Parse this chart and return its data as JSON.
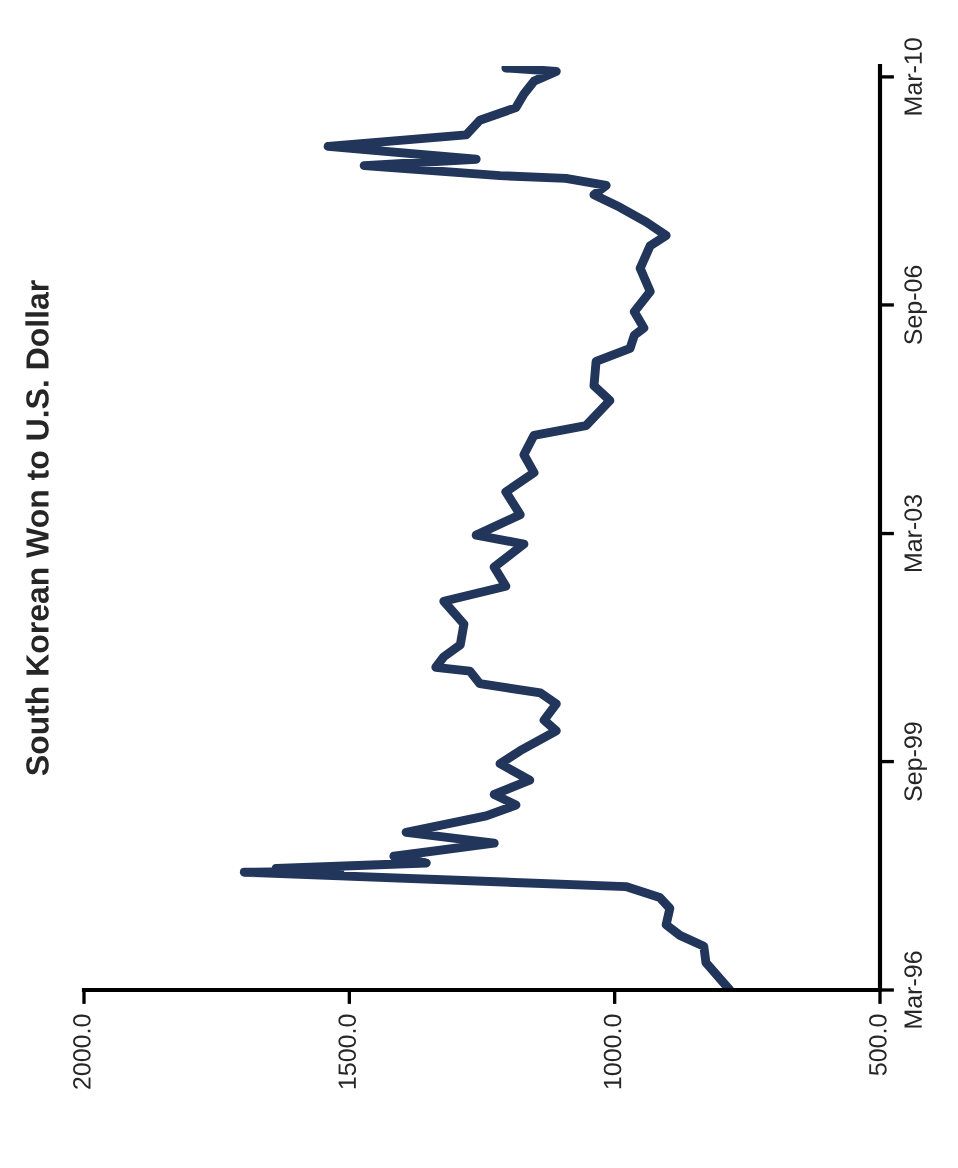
{
  "chart_data": {
    "type": "line",
    "title": "South Korean Won to U.S. Dollar",
    "x": [
      "1996-03-01",
      "1996-08-01",
      "1996-11-01",
      "1997-01-01",
      "1997-03-01",
      "1997-06-01",
      "1997-08-01",
      "1997-10-01",
      "1997-12-20",
      "1997-12-28",
      "1998-01-10",
      "1998-02-10",
      "1998-03-20",
      "1998-06-01",
      "1998-08-01",
      "1998-11-01",
      "1999-01-01",
      "1999-03-01",
      "1999-05-20",
      "1999-08-20",
      "1999-11-01",
      "2000-02-20",
      "2000-04-20",
      "2000-07-20",
      "2000-09-20",
      "2000-11-10",
      "2001-01-20",
      "2001-02-10",
      "2001-04-10",
      "2001-06-15",
      "2001-10-10",
      "2002-02-15",
      "2002-05-10",
      "2002-08-25",
      "2003-01-01",
      "2003-02-20",
      "2003-06-15",
      "2003-10-20",
      "2004-02-05",
      "2004-05-15",
      "2004-09-01",
      "2004-10-25",
      "2005-03-15",
      "2005-06-05",
      "2005-10-20",
      "2006-01-01",
      "2006-03-15",
      "2006-04-25",
      "2006-07-25",
      "2006-11-15",
      "2007-03-25",
      "2007-07-30",
      "2007-09-25",
      "2007-12-10",
      "2008-03-01",
      "2008-05-10",
      "2008-07-01",
      "2008-08-10",
      "2008-08-25",
      "2008-10-20",
      "2008-11-25",
      "2009-02-05",
      "2009-04-10",
      "2009-07-01",
      "2009-09-10",
      "2009-11-25",
      "2010-02-05",
      "2010-04-01",
      "2010-04-20"
    ],
    "series": [
      {
        "color": "#22355a",
        "values": [
          783,
          828,
          832,
          877,
          903,
          896,
          915,
          979,
          1698,
          1518,
          1638,
          1355,
          1416,
          1227,
          1393,
          1242,
          1186,
          1227,
          1160,
          1216,
          1178,
          1110,
          1133,
          1110,
          1140,
          1254,
          1273,
          1337,
          1322,
          1291,
          1284,
          1322,
          1205,
          1227,
          1171,
          1261,
          1178,
          1205,
          1152,
          1171,
          1152,
          1054,
          1009,
          1039,
          1035,
          971,
          963,
          945,
          963,
          933,
          952,
          933,
          903,
          941,
          990,
          1039,
          1016,
          1092,
          1216,
          1472,
          1261,
          1540,
          1280,
          1254,
          1186,
          1171,
          1152,
          1110,
          1205
        ]
      }
    ],
    "orientation": "horizontal",
    "ylim": [
      "1996-03-01",
      "2010-05-01"
    ],
    "yticks": [
      {
        "value": "1996-03-01",
        "label": "Mar-96"
      },
      {
        "value": "1999-09-01",
        "label": "Sep-99"
      },
      {
        "value": "2003-03-01",
        "label": "Mar-03"
      },
      {
        "value": "2006-09-01",
        "label": "Sep-06"
      },
      {
        "value": "2010-03-01",
        "label": "Mar-10"
      }
    ],
    "xlim": [
      2000,
      500
    ],
    "xticks": [
      {
        "value": 500,
        "label": "500.0"
      },
      {
        "value": 1000,
        "label": "1000.0"
      },
      {
        "value": 1500,
        "label": "1500.0"
      },
      {
        "value": 2000,
        "label": "2000.0"
      }
    ],
    "grid": false,
    "legend": false,
    "marker": "none",
    "line_style": "solid"
  }
}
